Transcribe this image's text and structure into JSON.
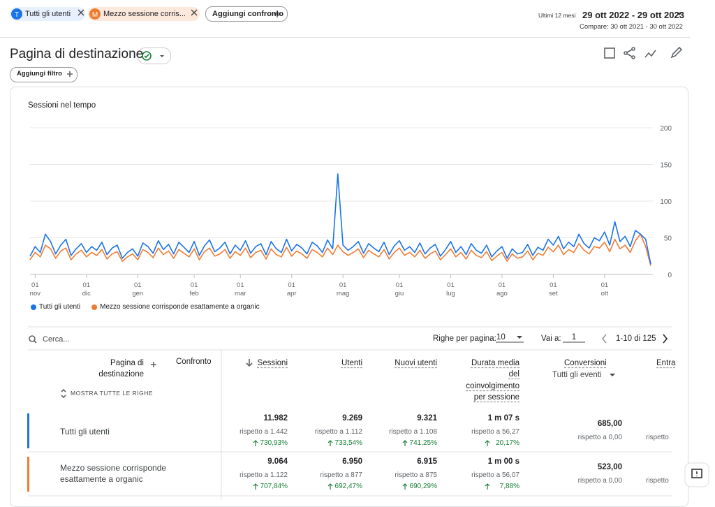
{
  "header": {
    "chips": [
      {
        "letter": "T",
        "label": "Tutti gli utenti"
      },
      {
        "letter": "M",
        "label": "Mezzo sessione corris..."
      }
    ],
    "add_compare": "Aggiungi confronto",
    "date_preset": "Ultimi 12 mesi",
    "date_range": "29 ott 2022 - 29 ott 2023",
    "compare": "Compare: 30 ott 2021 - 30 ott 2022"
  },
  "page": {
    "title": "Pagina di destinazione",
    "add_filter": "Aggiungi filtro"
  },
  "chart_data": {
    "type": "line",
    "title": "Sessioni nel tempo",
    "categories": [
      null,
      "01\nnov",
      null,
      null,
      null,
      null,
      null,
      null,
      null,
      null,
      null,
      "01\ndic",
      null,
      null,
      null,
      null,
      null,
      null,
      null,
      null,
      null,
      "01\ngen",
      null,
      null,
      null,
      null,
      null,
      null,
      null,
      null,
      null,
      null,
      "01\nfeb",
      null,
      null,
      null,
      null,
      null,
      null,
      null,
      null,
      "01\nmar",
      null,
      null,
      null,
      null,
      null,
      null,
      null,
      null,
      null,
      "01\napr",
      null,
      null,
      null,
      null,
      null,
      null,
      null,
      null,
      null,
      "01\nmag",
      null,
      null,
      null,
      null,
      null,
      null,
      null,
      null,
      null,
      null,
      "01\ngiu",
      null,
      null,
      null,
      null,
      null,
      null,
      null,
      null,
      null,
      "01\nlug",
      null,
      null,
      null,
      null,
      null,
      null,
      null,
      null,
      null,
      "01\nago",
      null,
      null,
      null,
      null,
      null,
      null,
      null,
      null,
      null,
      "01\nset",
      null,
      null,
      null,
      null,
      null,
      null,
      null,
      null,
      null,
      "01\nott",
      null,
      null,
      null,
      null,
      null,
      null,
      null,
      null,
      null
    ],
    "series": [
      {
        "name": "Tutti gli utenti",
        "color": "#1a73e8",
        "values": [
          25,
          38,
          30,
          55,
          45,
          28,
          40,
          48,
          26,
          35,
          42,
          30,
          38,
          33,
          44,
          27,
          36,
          40,
          22,
          30,
          35,
          25,
          43,
          38,
          29,
          46,
          34,
          41,
          28,
          44,
          37,
          30,
          45,
          26,
          39,
          47,
          31,
          36,
          44,
          28,
          40,
          33,
          46,
          29,
          38,
          42,
          27,
          45,
          35,
          30,
          48,
          32,
          41,
          36,
          28,
          44,
          39,
          30,
          47,
          35,
          137,
          40,
          33,
          38,
          45,
          29,
          42,
          36,
          31,
          44,
          27,
          39,
          46,
          33,
          38,
          30,
          43,
          28,
          36,
          41,
          25,
          34,
          45,
          30,
          38,
          27,
          42,
          33,
          29,
          40,
          24,
          32,
          38,
          22,
          35,
          28,
          30,
          41,
          26,
          37,
          33,
          48,
          40,
          52,
          35,
          44,
          38,
          55,
          42,
          36,
          50,
          46,
          58,
          40,
          72,
          45,
          52,
          38,
          60,
          55,
          48,
          14
        ]
      },
      {
        "name": "Mezzo sessione corrisponde esattamente a organic",
        "color": "#f07c32",
        "values": [
          20,
          30,
          24,
          40,
          35,
          22,
          32,
          36,
          20,
          28,
          33,
          24,
          30,
          26,
          34,
          21,
          28,
          31,
          18,
          24,
          28,
          20,
          34,
          30,
          23,
          36,
          27,
          32,
          22,
          34,
          29,
          24,
          35,
          20,
          31,
          36,
          25,
          28,
          34,
          22,
          31,
          26,
          36,
          23,
          30,
          33,
          21,
          35,
          27,
          24,
          37,
          25,
          32,
          28,
          22,
          34,
          30,
          24,
          36,
          27,
          40,
          31,
          26,
          30,
          35,
          23,
          33,
          28,
          24,
          34,
          21,
          30,
          36,
          26,
          30,
          24,
          33,
          22,
          28,
          32,
          20,
          27,
          35,
          24,
          30,
          21,
          33,
          26,
          23,
          31,
          19,
          25,
          30,
          18,
          28,
          22,
          24,
          32,
          20,
          29,
          26,
          37,
          31,
          40,
          27,
          34,
          30,
          42,
          33,
          28,
          38,
          36,
          44,
          31,
          48,
          35,
          40,
          30,
          46,
          55,
          38,
          12
        ]
      }
    ],
    "ylim": [
      0,
      200
    ],
    "yticks": [
      0,
      50,
      100,
      150,
      200
    ],
    "grid": true,
    "legend": "bottom"
  },
  "table": {
    "search": "Cerca...",
    "rows_per_page_label": "Righe per pagina:",
    "rows_per_page": "10",
    "goto_label": "Vai a:",
    "goto": "1",
    "pagination": "1-10 di 125",
    "dimension_header": "Pagina di\ndestinazione",
    "compare_header": "Confronto",
    "show_all": "MOSTRA TUTTE LE RIGHE",
    "columns": [
      "Sessioni",
      "Utenti",
      "Nuovi utenti",
      "Durata media\ndel\ncoinvolgimento\nper sessione",
      "Conversioni",
      "Entra"
    ],
    "conversions_filter": "Tutti gli eventi",
    "rows": [
      {
        "name": "Tutti gli utenti",
        "cells": [
          {
            "value": "11.982",
            "compare": "rispetto a 1.442",
            "change": "730,93%"
          },
          {
            "value": "9.269",
            "compare": "rispetto a 1.112",
            "change": "733,54%"
          },
          {
            "value": "9.321",
            "compare": "rispetto a 1.108",
            "change": "741,25%"
          },
          {
            "value": "1 m 07 s",
            "compare": "rispetto a 56,27",
            "change": "20,17%"
          },
          {
            "value": "685,00",
            "compare": "rispetto a 0,00"
          },
          {
            "compare": "rispetto"
          }
        ]
      },
      {
        "name": "Mezzo sessione corrisponde\nesattamente a organic",
        "cells": [
          {
            "value": "9.064",
            "compare": "rispetto a 1.122",
            "change": "707,84%"
          },
          {
            "value": "6.950",
            "compare": "rispetto a 877",
            "change": "692,47%"
          },
          {
            "value": "6.915",
            "compare": "rispetto a 875",
            "change": "690,29%"
          },
          {
            "value": "1 m 00 s",
            "compare": "rispetto a 56,07",
            "change": "7,88%"
          },
          {
            "value": "523,00",
            "compare": "rispetto a 0,00"
          },
          {
            "compare": "rispetto"
          }
        ]
      }
    ]
  }
}
